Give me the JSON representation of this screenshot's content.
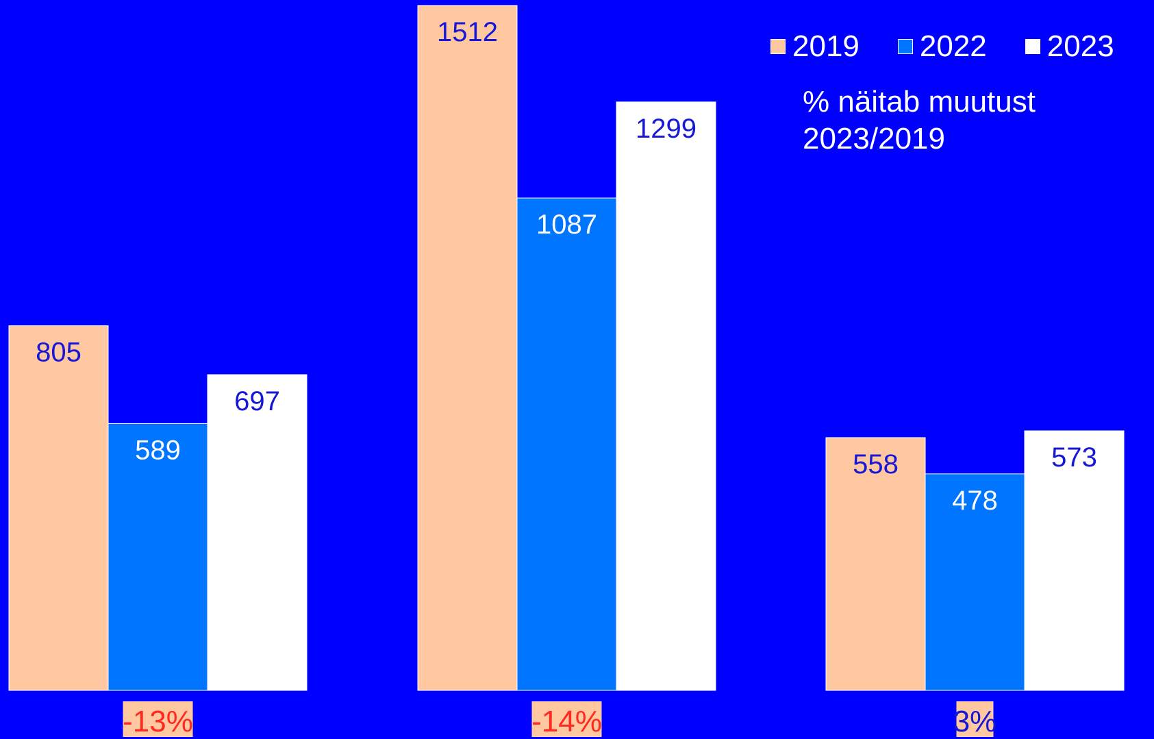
{
  "chart_data": {
    "type": "bar",
    "title": "",
    "xlabel": "",
    "ylabel": "",
    "ylim": [
      0,
      1512
    ],
    "grid": false,
    "legend_position": "top-right",
    "categories": [
      "",
      "",
      ""
    ],
    "series": [
      {
        "name": "2019",
        "color": "#FFC8A0",
        "values": [
          805,
          1512,
          558
        ]
      },
      {
        "name": "2022",
        "color": "#0075FF",
        "values": [
          589,
          1087,
          478
        ]
      },
      {
        "name": "2023",
        "color": "#FFFFFF",
        "values": [
          697,
          1299,
          573
        ]
      }
    ],
    "change_labels": [
      "-13%",
      "-14%",
      "3%"
    ],
    "change_colors": {
      "negative_text": "#FF2A1F",
      "positive_text": "#1717D6",
      "background": "#FFC8A0"
    },
    "value_label_colors": {
      "2019": "#1717D6",
      "2022": "#FFFFFF",
      "2023": "#1717D6"
    }
  },
  "note": {
    "line1": "% näitab muutust",
    "line2": "2023/2019"
  }
}
